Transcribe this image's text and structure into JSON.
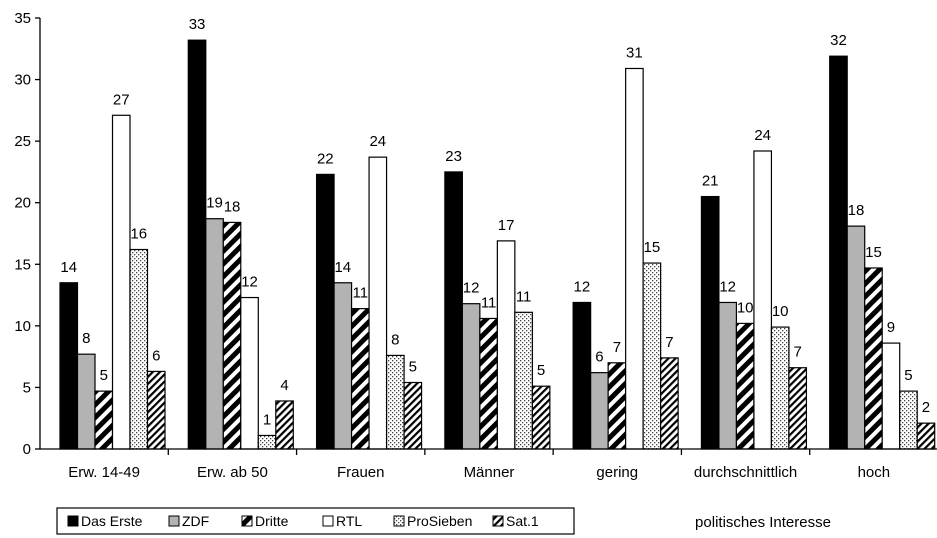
{
  "chart_data": {
    "type": "bar",
    "categories": [
      "Erw. 14-49",
      "Erw. ab 50",
      "Frauen",
      "Männer",
      "gering",
      "durchschnittlich",
      "hoch"
    ],
    "series": [
      {
        "name": "Das Erste",
        "values": [
          13.5,
          33.2,
          22.3,
          22.5,
          11.9,
          20.5,
          31.9
        ],
        "labels": [
          "14",
          "33",
          "22",
          "23",
          "12",
          "21",
          "32"
        ]
      },
      {
        "name": "ZDF",
        "values": [
          7.7,
          18.7,
          13.5,
          11.8,
          6.2,
          11.9,
          18.1
        ],
        "labels": [
          "8",
          "19",
          "14",
          "12",
          "6",
          "12",
          "18"
        ]
      },
      {
        "name": "Dritte",
        "values": [
          4.7,
          18.4,
          11.4,
          10.6,
          7.0,
          10.2,
          14.7
        ],
        "labels": [
          "5",
          "18",
          "11",
          "11",
          "7",
          "10",
          "15"
        ]
      },
      {
        "name": "RTL",
        "values": [
          27.1,
          12.3,
          23.7,
          16.9,
          30.9,
          24.2,
          8.6
        ],
        "labels": [
          "27",
          "12",
          "24",
          "17",
          "31",
          "24",
          "9"
        ]
      },
      {
        "name": "ProSieben",
        "values": [
          16.2,
          1.1,
          7.6,
          11.1,
          15.1,
          9.9,
          4.7
        ],
        "labels": [
          "16",
          "1",
          "8",
          "11",
          "15",
          "10",
          "5"
        ]
      },
      {
        "name": "Sat.1",
        "values": [
          6.3,
          3.9,
          5.4,
          5.1,
          7.4,
          6.6,
          2.1
        ],
        "labels": [
          "6",
          "4",
          "5",
          "5",
          "7",
          "7",
          "2"
        ]
      }
    ],
    "ylim": [
      0,
      35
    ],
    "yticks": [
      0,
      5,
      10,
      15,
      20,
      25,
      30,
      35
    ],
    "xlabel": "",
    "ylabel": "",
    "grid": false,
    "legend_position": "bottom-left",
    "annotation": "politisches Interesse"
  },
  "series_styles": [
    {
      "fill": "solid",
      "color": "#000000"
    },
    {
      "fill": "solid",
      "color": "#b3b3b3"
    },
    {
      "fill": "diagonal-thick",
      "color": "#000000"
    },
    {
      "fill": "solid",
      "color": "#ffffff"
    },
    {
      "fill": "dots",
      "color": "#444444"
    },
    {
      "fill": "diagonal-thin",
      "color": "#000000"
    }
  ]
}
